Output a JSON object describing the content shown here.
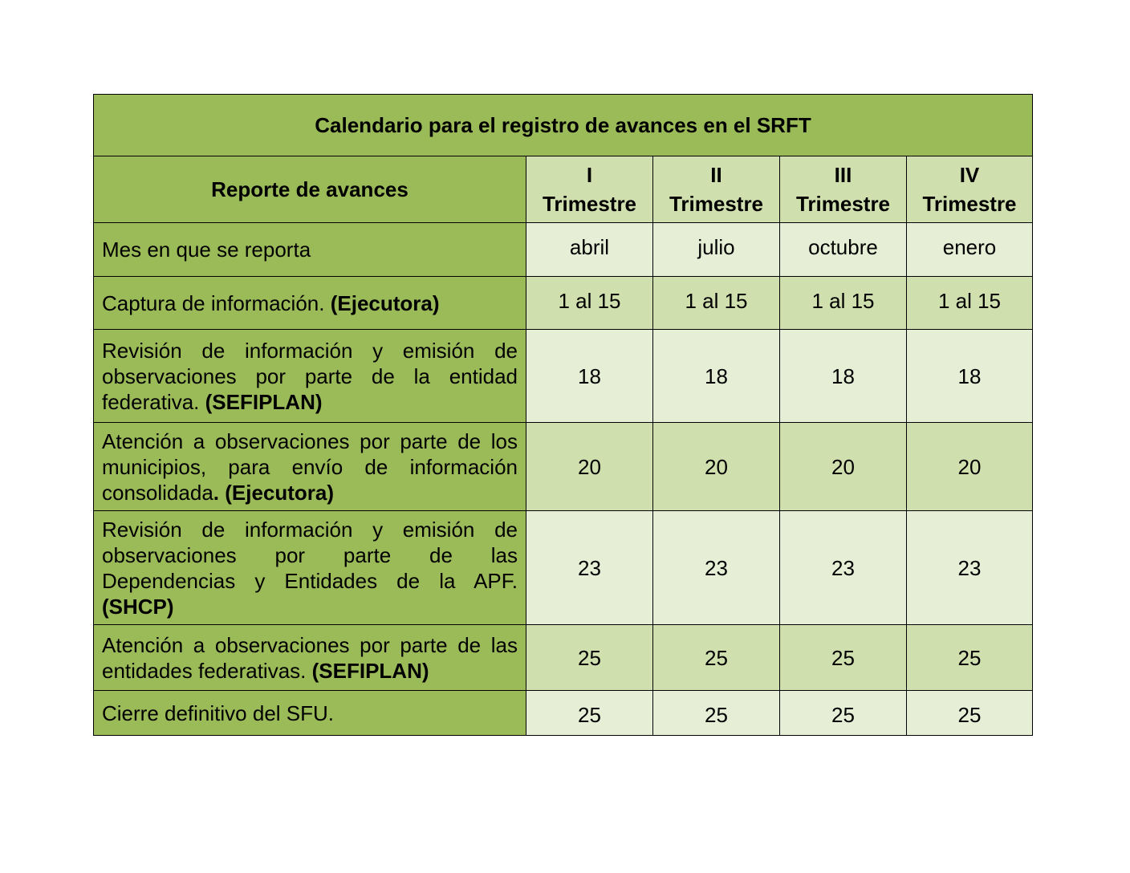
{
  "table": {
    "title": "Calendario para el registro de avances en el SRFT",
    "header": {
      "label": "Reporte de avances",
      "quarters": [
        {
          "numeral": "I",
          "word": "Trimestre"
        },
        {
          "numeral": "II",
          "word": "Trimestre"
        },
        {
          "numeral": "III",
          "word": "Trimestre"
        },
        {
          "numeral": "IV",
          "word": "Trimestre"
        }
      ]
    },
    "rows": [
      {
        "text": "Mes en que se reporta",
        "bold": "",
        "values": [
          "abril",
          "julio",
          "octubre",
          "enero"
        ]
      },
      {
        "text": "Captura de información. ",
        "bold": "(Ejecutora)",
        "values": [
          "1 al 15",
          "1 al 15",
          "1 al 15",
          "1 al 15"
        ]
      },
      {
        "text": "Revisión de información y emisión de observaciones por parte de la entidad federativa. ",
        "bold": "(SEFIPLAN)",
        "values": [
          "18",
          "18",
          "18",
          "18"
        ]
      },
      {
        "text": "Atención a observaciones por parte de los municipios, para envío de información consolidada",
        "bold": ". (Ejecutora)",
        "values": [
          "20",
          "20",
          "20",
          "20"
        ]
      },
      {
        "text": "Revisión de información y emisión de observaciones por parte de las Dependencias y Entidades de la APF. ",
        "bold": "(SHCP)",
        "values": [
          "23",
          "23",
          "23",
          "23"
        ]
      },
      {
        "text": "Atención a observaciones por parte de las entidades federativas. ",
        "bold": "(SEFIPLAN)",
        "values": [
          "25",
          "25",
          "25",
          "25"
        ]
      },
      {
        "text": "Cierre definitivo del SFU.",
        "bold": "",
        "values": [
          "25",
          "25",
          "25",
          "25"
        ]
      }
    ],
    "colors": {
      "dark_green": "#9bbb59",
      "mid_green": "#cfdfae",
      "light_green": "#e6eed6"
    }
  }
}
